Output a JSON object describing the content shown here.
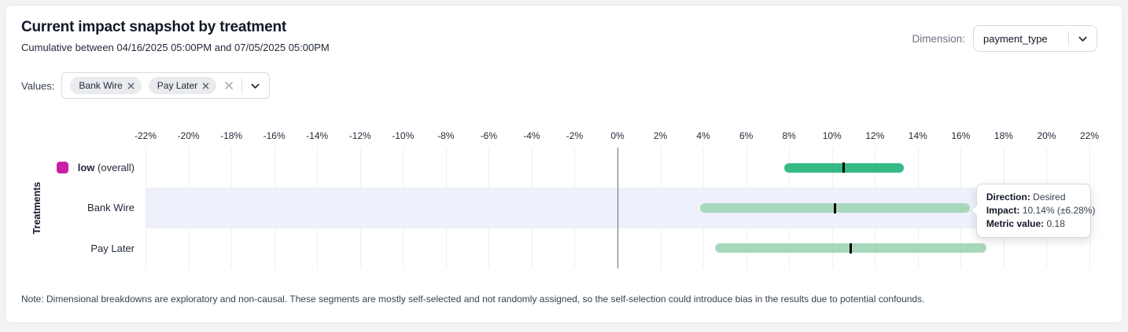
{
  "header": {
    "title": "Current impact snapshot by treatment",
    "subtitle": "Cumulative between 04/16/2025 05:00PM and 07/05/2025 05:00PM",
    "dimension_label": "Dimension:",
    "dimension_value": "payment_type"
  },
  "values_filter": {
    "label": "Values:",
    "chips": [
      "Bank Wire",
      "Pay Later"
    ]
  },
  "chart_data": {
    "type": "range-bar",
    "ylabel": "Treatments",
    "xlim": [
      -22,
      22
    ],
    "tick_suffix": "%",
    "ticks": [
      -22,
      -20,
      -18,
      -16,
      -14,
      -12,
      -10,
      -8,
      -6,
      -4,
      -2,
      0,
      2,
      4,
      6,
      8,
      10,
      12,
      14,
      16,
      18,
      20,
      22
    ],
    "zero_line": 0,
    "rows": [
      {
        "label": "low",
        "label_suffix": " (overall)",
        "swatch_color": "#ca1fa5",
        "bar_color": "#35b987",
        "low": 7.76,
        "high": 13.35,
        "impact": 10.54,
        "highlight": false
      },
      {
        "label": "Bank Wire",
        "swatch_color": null,
        "bar_color": "#a7d8bc",
        "low": 3.86,
        "high": 16.42,
        "impact": 10.14,
        "highlight": true
      },
      {
        "label": "Pay Later",
        "swatch_color": null,
        "bar_color": "#a7d8bc",
        "low": 4.55,
        "high": 17.2,
        "impact": 10.87,
        "highlight": false
      }
    ]
  },
  "tooltip": {
    "anchor_row": 1,
    "lines": [
      {
        "label": "Direction:",
        "value": "Desired"
      },
      {
        "label": "Impact:",
        "value": "10.14% (±6.28%)"
      },
      {
        "label": "Metric value:",
        "value": "0.18"
      }
    ]
  },
  "note": "Note: Dimensional breakdowns are exploratory and non-causal. These segments are mostly self-selected and not randomly assigned, so the self-selection could introduce bias in the results due to potential confounds."
}
